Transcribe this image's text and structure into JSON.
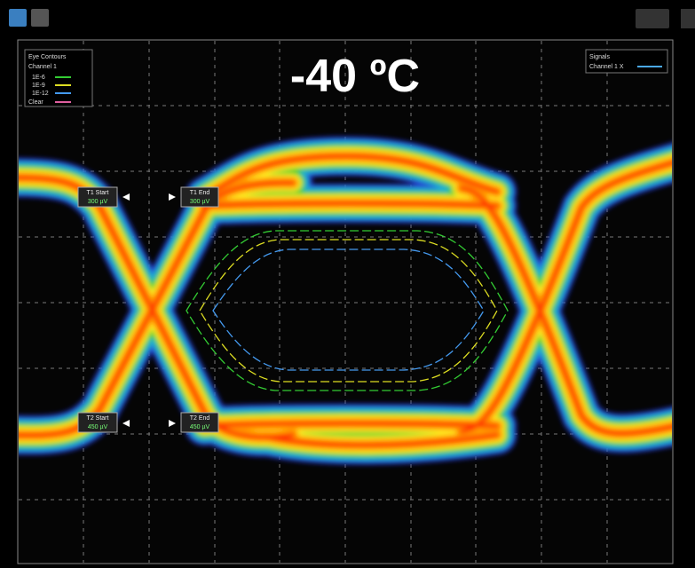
{
  "header": {
    "title": "-40 ºC"
  },
  "eye_contours": {
    "title": "Eye Contours",
    "source": "Channel 1",
    "levels": [
      {
        "label": "1E-6",
        "color": "#33cc33"
      },
      {
        "label": "1E-9",
        "color": "#dddd22"
      },
      {
        "label": "1E-12",
        "color": "#4499ee"
      }
    ],
    "clear": "Clear"
  },
  "signals": {
    "title": "Signals",
    "entries": [
      {
        "label": "Channel 1 X",
        "color": "#4aa8e8"
      }
    ]
  },
  "markers": [
    {
      "label": "T1 Start",
      "value": "300 µV"
    },
    {
      "label": "T1 End",
      "value": "300 µV"
    },
    {
      "label": "T2 Start",
      "value": "450 µV"
    },
    {
      "label": "T2 End",
      "value": "450 µV"
    }
  ]
}
